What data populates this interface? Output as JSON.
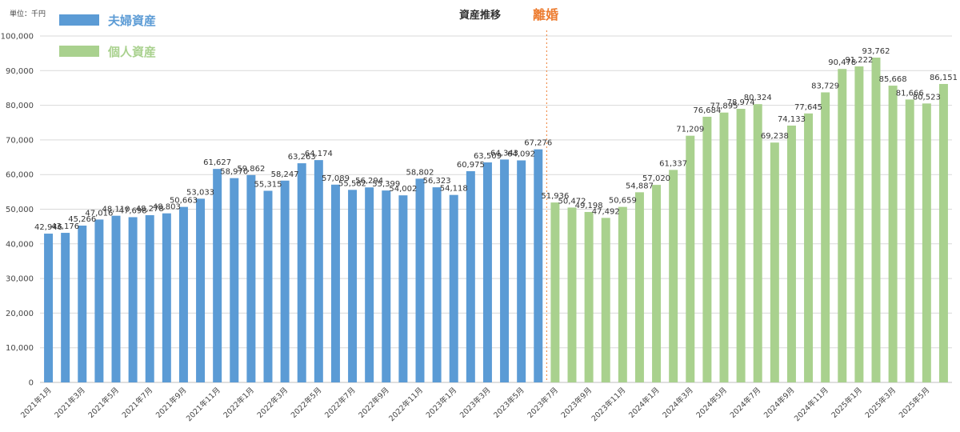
{
  "chart_data": {
    "type": "bar",
    "title": "資産推移",
    "unit_label": "単位：千円",
    "event_label": "離婚",
    "event_color": "#ED7D31",
    "ylim": [
      0,
      100000
    ],
    "yticks": [
      "0",
      "10,000",
      "20,000",
      "30,000",
      "40,000",
      "50,000",
      "60,000",
      "70,000",
      "80,000",
      "90,000",
      "100,000"
    ],
    "grid": true,
    "legend_position": "top-left",
    "series": [
      {
        "name": "夫婦資産",
        "color": "#5B9BD5",
        "x": [
          "2021年1月",
          "2021年2月",
          "2021年3月",
          "2021年4月",
          "2021年5月",
          "2021年6月",
          "2021年7月",
          "2021年8月",
          "2021年9月",
          "2021年10月",
          "2021年11月",
          "2021年12月",
          "2022年1月",
          "2022年2月",
          "2022年3月",
          "2022年4月",
          "2022年5月",
          "2022年6月",
          "2022年7月",
          "2022年8月",
          "2022年9月",
          "2022年10月",
          "2022年11月",
          "2022年12月",
          "2023年1月",
          "2023年2月",
          "2023年3月",
          "2023年4月",
          "2023年5月",
          "2023年6月"
        ],
        "values": [
          42946,
          43176,
          45266,
          47016,
          48110,
          47698,
          48278,
          48803,
          50663,
          53033,
          61627,
          58970,
          59862,
          55315,
          58247,
          63263,
          64174,
          57089,
          55582,
          56294,
          55399,
          54002,
          58802,
          56323,
          54118,
          60975,
          63509,
          64343,
          64092,
          67276
        ],
        "value_labels": [
          "42,946",
          "43,176",
          "45,266",
          "47,016",
          "48,110",
          "47,698",
          "48,278",
          "48,803",
          "50,663",
          "53,033",
          "61,627",
          "58,970",
          "59,862",
          "55,315",
          "58,247",
          "63,263",
          "64,174",
          "57,089",
          "55,582",
          "56,294",
          "55,399",
          "54,002",
          "58,802",
          "56,323",
          "54,118",
          "60,975",
          "63,509",
          "64,343",
          "64,092",
          "67,276"
        ]
      },
      {
        "name": "個人資産",
        "color": "#A9D18E",
        "x": [
          "2023年7月",
          "2023年8月",
          "2023年9月",
          "2023年10月",
          "2023年11月",
          "2023年12月",
          "2024年1月",
          "2024年2月",
          "2024年3月",
          "2024年4月",
          "2024年5月",
          "2024年6月",
          "2024年7月",
          "2024年8月",
          "2024年9月",
          "2024年10月",
          "2024年11月",
          "2024年12月",
          "2025年1月",
          "2025年2月",
          "2025年3月",
          "2025年4月",
          "2025年5月",
          "2025年6月"
        ],
        "values": [
          51936,
          50472,
          49198,
          47492,
          50659,
          54887,
          57020,
          61337,
          71209,
          76684,
          77895,
          78974,
          80324,
          69238,
          74133,
          77645,
          83729,
          90478,
          91222,
          93762,
          85668,
          81666,
          80523,
          86151
        ],
        "value_labels": [
          "51,936",
          "50,472",
          "49,198",
          "47,492",
          "50,659",
          "54,887",
          "57,020",
          "61,337",
          "71,209",
          "76,684",
          "77,895",
          "78,974",
          "80,324",
          "69,238",
          "74,133",
          "77,645",
          "83,729",
          "90,478",
          "91,222",
          "93,762",
          "85,668",
          "81,666",
          "80,523",
          "86,151"
        ]
      }
    ],
    "xtick_labels": [
      "2021年1月",
      "2021年3月",
      "2021年5月",
      "2021年7月",
      "2021年9月",
      "2021年11月",
      "2022年1月",
      "2022年3月",
      "2022年5月",
      "2022年7月",
      "2022年9月",
      "2022年11月",
      "2023年1月",
      "2023年3月",
      "2023年5月",
      "2023年7月",
      "2023年9月",
      "2023年11月",
      "2024年1月",
      "2024年3月",
      "2024年5月",
      "2024年7月",
      "2024年9月",
      "2024年11月",
      "2025年1月",
      "2025年3月",
      "2025年5月"
    ]
  }
}
